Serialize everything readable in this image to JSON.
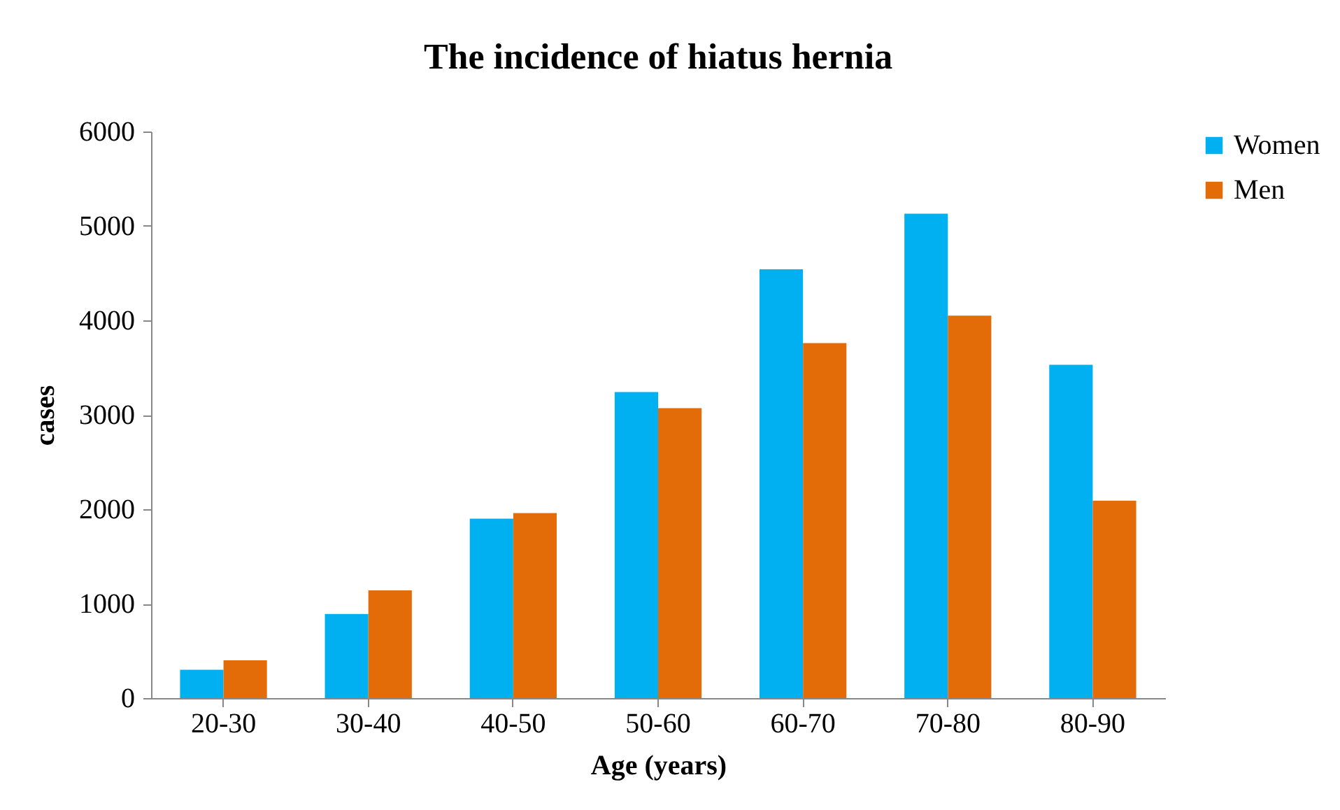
{
  "chart_data": {
    "type": "bar",
    "title": "The incidence of hiatus hernia",
    "xlabel": "Age (years)",
    "ylabel": "cases",
    "categories": [
      "20-30",
      "30-40",
      "40-50",
      "50-60",
      "60-70",
      "70-80",
      "80-90"
    ],
    "series": [
      {
        "name": "Women",
        "color": "#00b0f0",
        "values": [
          300,
          890,
          1900,
          3240,
          4540,
          5130,
          3530
        ]
      },
      {
        "name": "Men",
        "color": "#e36c09",
        "values": [
          400,
          1140,
          1960,
          3070,
          3760,
          4050,
          2090
        ]
      }
    ],
    "ylim": [
      0,
      6000
    ],
    "yticks": [
      0,
      1000,
      2000,
      3000,
      4000,
      5000,
      6000
    ],
    "grid": false,
    "legend": "right"
  }
}
